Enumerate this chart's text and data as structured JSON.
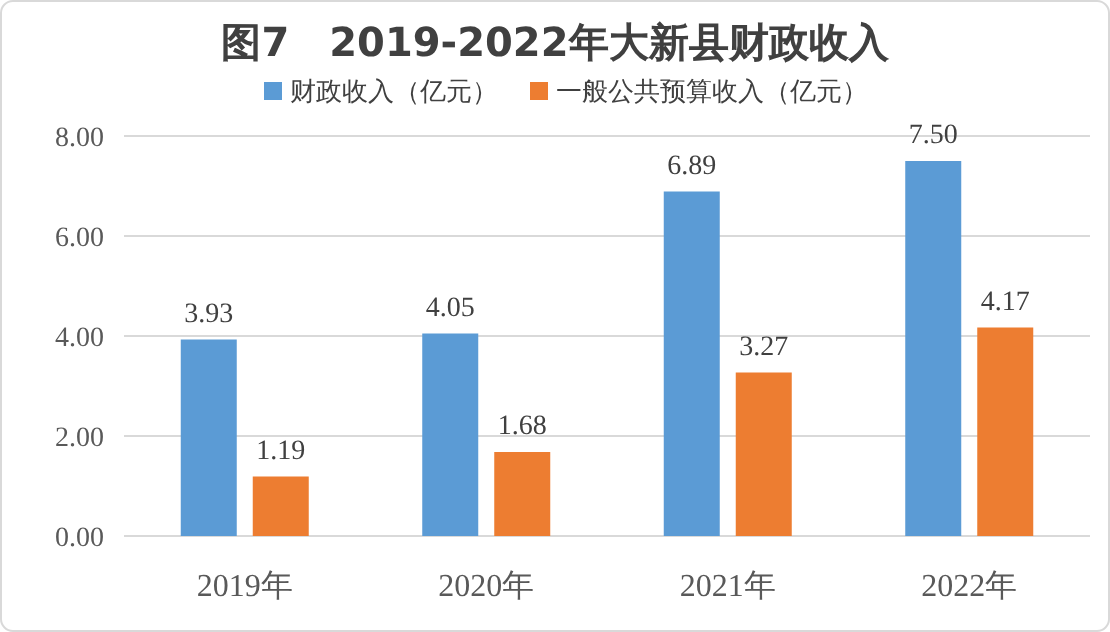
{
  "chart_data": {
    "type": "bar",
    "title": "图7　2019-2022年大新县财政收入",
    "categories": [
      "2019年",
      "2020年",
      "2021年",
      "2022年"
    ],
    "series": [
      {
        "name": "财政收入（亿元）",
        "color": "#5b9bd5",
        "values": [
          3.93,
          4.05,
          6.89,
          7.5
        ],
        "value_labels": [
          "3.93",
          "4.05",
          "6.89",
          "7.50"
        ]
      },
      {
        "name": "一般公共预算收入（亿元）",
        "color": "#ed7d31",
        "values": [
          1.19,
          1.68,
          3.27,
          4.17
        ],
        "value_labels": [
          "1.19",
          "1.68",
          "3.27",
          "4.17"
        ]
      }
    ],
    "ylim": [
      0,
      8
    ],
    "yticks": [
      {
        "value": 0,
        "label": "0.00"
      },
      {
        "value": 2,
        "label": "2.00"
      },
      {
        "value": 4,
        "label": "4.00"
      },
      {
        "value": 6,
        "label": "6.00"
      },
      {
        "value": 8,
        "label": "8.00"
      }
    ],
    "grid": "y",
    "legend": "top"
  }
}
